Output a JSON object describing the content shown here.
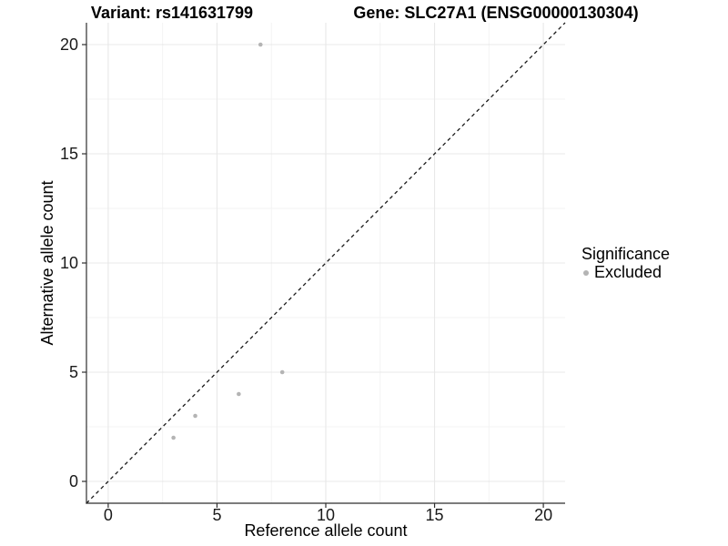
{
  "titles": {
    "variant": "Variant: rs141631799",
    "gene": "Gene: SLC27A1 (ENSG00000130304)"
  },
  "chart_data": {
    "type": "scatter",
    "xlabel": "Reference allele count",
    "ylabel": "Alternative allele count",
    "xlim": [
      -1,
      21
    ],
    "ylim": [
      -1,
      21
    ],
    "x_major_ticks": [
      0,
      5,
      10,
      15,
      20
    ],
    "y_major_ticks": [
      0,
      5,
      10,
      15,
      20
    ],
    "x_minor_ticks": [
      2.5,
      7.5,
      12.5,
      17.5
    ],
    "y_minor_ticks": [
      2.5,
      7.5,
      12.5,
      17.5
    ],
    "grid": "major+minor",
    "series": [
      {
        "name": "Excluded",
        "marker": "circle",
        "color": "#b4b4b4",
        "points": [
          [
            3,
            2
          ],
          [
            4,
            3
          ],
          [
            6,
            4
          ],
          [
            8,
            5
          ],
          [
            7,
            20
          ]
        ]
      }
    ],
    "reference_line": {
      "equation": "y = x",
      "style": "dashed",
      "color": "#1a1a1a"
    }
  },
  "legend": {
    "title": "Significance",
    "entries": [
      {
        "label": "Excluded",
        "color": "#b4b4b4",
        "marker": "circle"
      }
    ]
  },
  "colors": {
    "background": "#ffffff",
    "grid_major": "#e8e8e8",
    "grid_minor": "#f3f3f3",
    "axis_line": "#2e2e2e",
    "tick": "#2e2e2e",
    "text": "#000000"
  }
}
